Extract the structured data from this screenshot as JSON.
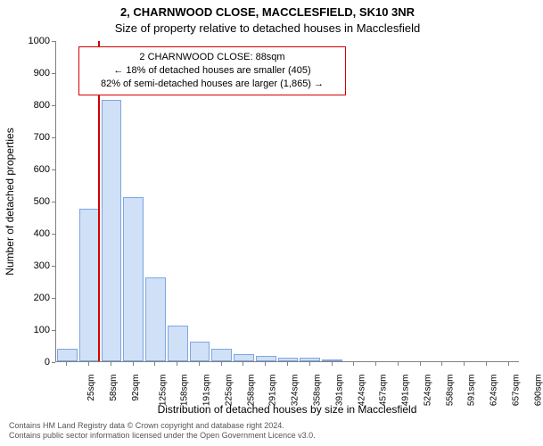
{
  "title": {
    "line1": "2, CHARNWOOD CLOSE, MACCLESFIELD, SK10 3NR",
    "line2": "Size of property relative to detached houses in Macclesfield"
  },
  "chart": {
    "type": "histogram",
    "ylabel": "Number of detached properties",
    "xlabel": "Distribution of detached houses by size in Macclesfield",
    "ylim": [
      0,
      1000
    ],
    "ytick_step": 100,
    "yticks": [
      0,
      100,
      200,
      300,
      400,
      500,
      600,
      700,
      800,
      900,
      1000
    ],
    "bar_fill": "#cfe0f7",
    "bar_border": "#7ea6e0",
    "marker_color": "#d40000",
    "marker_x_sqm": 88,
    "background_color": "#ffffff",
    "axis_color": "#808080",
    "x_start": 25,
    "x_step": 33,
    "xticks": [
      "25sqm",
      "58sqm",
      "92sqm",
      "125sqm",
      "158sqm",
      "191sqm",
      "225sqm",
      "258sqm",
      "291sqm",
      "324sqm",
      "358sqm",
      "391sqm",
      "424sqm",
      "457sqm",
      "491sqm",
      "524sqm",
      "558sqm",
      "591sqm",
      "624sqm",
      "657sqm",
      "690sqm"
    ],
    "bars": [
      40,
      475,
      815,
      510,
      260,
      110,
      60,
      40,
      22,
      18,
      12,
      10,
      5,
      0,
      0,
      0,
      0,
      0,
      0,
      0,
      0
    ]
  },
  "callout": {
    "border_color": "#d40000",
    "lines": [
      "2 CHARNWOOD CLOSE: 88sqm",
      "← 18% of detached houses are smaller (405)",
      "82% of semi-detached houses are larger (1,865) →"
    ]
  },
  "attribution": {
    "line1": "Contains HM Land Registry data © Crown copyright and database right 2024.",
    "line2": "Contains public sector information licensed under the Open Government Licence v3.0."
  }
}
